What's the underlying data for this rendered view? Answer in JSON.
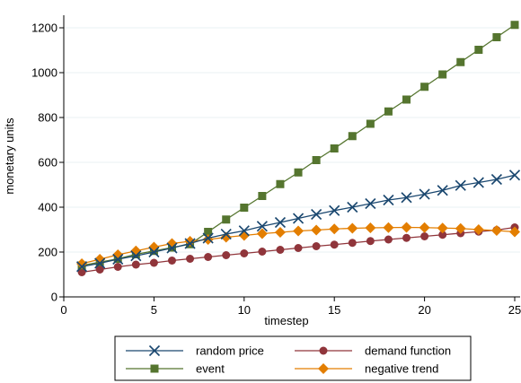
{
  "chart_data": {
    "type": "line",
    "title": "",
    "xlabel": "timestep",
    "ylabel": "monetary units",
    "xlim": [
      0,
      25
    ],
    "ylim": [
      0,
      1200
    ],
    "x_ticks": [
      0,
      5,
      10,
      15,
      20,
      25
    ],
    "y_ticks": [
      0,
      200,
      400,
      600,
      800,
      1000,
      1200
    ],
    "x_tick_labels": [
      "0",
      "5",
      "10",
      "15",
      "20",
      "25"
    ],
    "y_tick_labels": [
      "0",
      "200",
      "400",
      "600",
      "800",
      "1000",
      "1200"
    ],
    "grid": "horizontal",
    "legend_position": "bottom",
    "x": [
      1,
      2,
      3,
      4,
      5,
      6,
      7,
      8,
      9,
      10,
      11,
      12,
      13,
      14,
      15,
      16,
      17,
      18,
      19,
      20,
      21,
      22,
      23,
      24,
      25
    ],
    "series": [
      {
        "name": "random price",
        "color": "#1a476f",
        "marker": "x",
        "values": [
          135,
          150,
          168,
          183,
          200,
          218,
          238,
          262,
          280,
          295,
          315,
          332,
          350,
          368,
          385,
          400,
          416,
          432,
          443,
          458,
          475,
          497,
          510,
          524,
          543
        ]
      },
      {
        "name": "demand function",
        "color": "#90353b",
        "marker": "circle",
        "values": [
          110,
          122,
          134,
          144,
          152,
          162,
          170,
          178,
          186,
          194,
          202,
          210,
          218,
          226,
          233,
          241,
          249,
          256,
          263,
          270,
          277,
          284,
          291,
          298,
          310
        ]
      },
      {
        "name": "event",
        "color": "#55752f",
        "marker": "square",
        "values": [
          140,
          155,
          170,
          190,
          205,
          220,
          235,
          290,
          345,
          398,
          450,
          503,
          555,
          610,
          662,
          717,
          772,
          827,
          880,
          937,
          992,
          1047,
          1102,
          1158,
          1213
        ]
      },
      {
        "name": "negative trend",
        "color": "#e37e00",
        "marker": "diamond",
        "values": [
          148,
          168,
          188,
          205,
          222,
          238,
          248,
          256,
          266,
          274,
          282,
          288,
          294,
          298,
          303,
          306,
          308,
          309,
          310,
          309,
          307,
          305,
          300,
          296,
          290
        ]
      }
    ],
    "legend": {
      "layout_order": [
        "random price",
        "demand function",
        "event",
        "negative trend"
      ]
    }
  }
}
